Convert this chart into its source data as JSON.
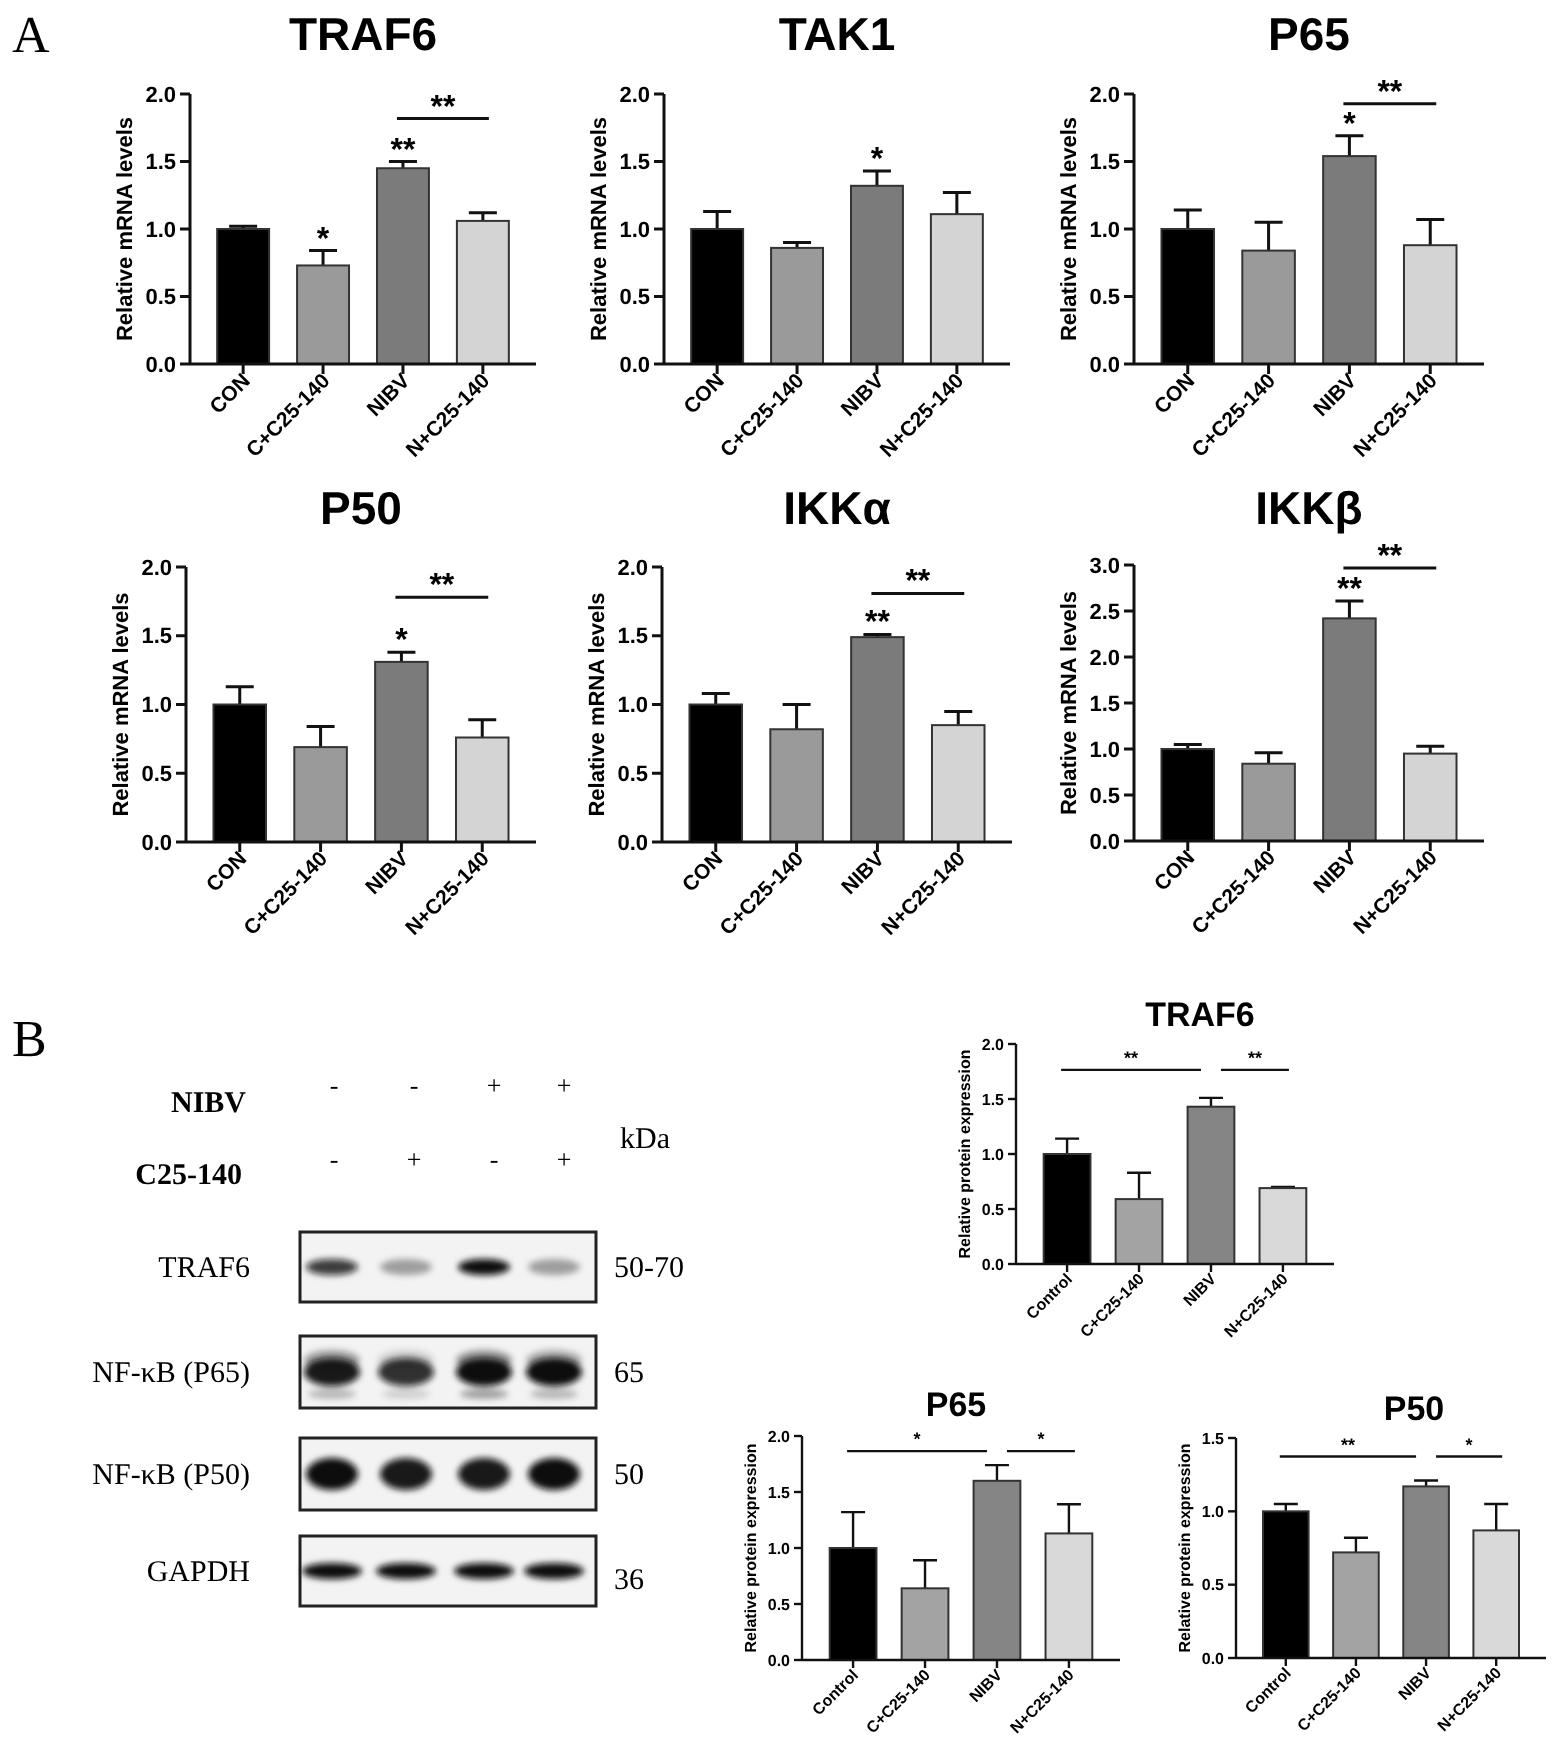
{
  "chart_data": [
    {
      "type": "bar",
      "title": "TRAF6",
      "ylabel": "Relative mRNA levels",
      "categories": [
        "CON",
        "C+C25-140",
        "NIBV",
        "N+C25-140"
      ],
      "values": [
        1.0,
        0.73,
        1.45,
        1.06
      ],
      "errors": [
        0.02,
        0.11,
        0.05,
        0.06
      ],
      "colors": [
        "#000000",
        "#9a9a9a",
        "#7b7b7b",
        "#d4d4d4"
      ],
      "ylim": [
        0,
        2
      ],
      "yticks": [
        {
          "value": 0,
          "label": "0.0"
        },
        {
          "value": 0.5,
          "label": "0.5"
        },
        {
          "value": 1,
          "label": "1.0"
        },
        {
          "value": 1.5,
          "label": "1.5"
        },
        {
          "value": 2,
          "label": "2.0"
        }
      ],
      "annotations": [
        "A",
        {
          "text": "*",
          "x": "C+C25-140",
          "y": 0.84
        },
        {
          "text": "**",
          "x": "NIBV",
          "y": 1.5
        },
        "**"
      ]
    },
    {
      "type": "bar",
      "title": "TAK1",
      "ylabel": "Relative mRNA levels",
      "categories": [
        "CON",
        "C+C25-140",
        "NIBV",
        "N+C25-140"
      ],
      "values": [
        1.0,
        0.86,
        1.32,
        1.11
      ],
      "errors": [
        0.13,
        0.04,
        0.11,
        0.16
      ],
      "colors": [
        "#000000",
        "#9a9a9a",
        "#7b7b7b",
        "#d4d4d4"
      ],
      "ylim": [
        0,
        2
      ],
      "yticks": [
        {
          "value": 0,
          "label": "0.0"
        },
        {
          "value": 0.5,
          "label": "0.5"
        },
        {
          "value": 1,
          "label": "1.0"
        },
        {
          "value": 1.5,
          "label": "1.5"
        },
        {
          "value": 2,
          "label": "2.0"
        }
      ],
      "annotations": [
        {
          "text": "*",
          "x": "NIBV",
          "y": 1.43
        }
      ]
    },
    {
      "type": "bar",
      "title": "P65",
      "ylabel": "Relative mRNA levels",
      "categories": [
        "CON",
        "C+C25-140",
        "NIBV",
        "N+C25-140"
      ],
      "values": [
        1.0,
        0.84,
        1.54,
        0.88
      ],
      "errors": [
        0.14,
        0.21,
        0.15,
        0.19
      ],
      "colors": [
        "#000000",
        "#9a9a9a",
        "#7b7b7b",
        "#d4d4d4"
      ],
      "ylim": [
        0,
        2
      ],
      "yticks": [
        {
          "value": 0,
          "label": "0.0"
        },
        {
          "value": 0.5,
          "label": "0.5"
        },
        {
          "value": 1,
          "label": "1.0"
        },
        {
          "value": 1.5,
          "label": "1.5"
        },
        {
          "value": 2,
          "label": "2.0"
        }
      ],
      "annotations": [
        {
          "text": "*",
          "x": "NIBV",
          "y": 1.69
        },
        "**"
      ]
    },
    {
      "type": "bar",
      "title": "P50",
      "ylabel": "Relative mRNA levels",
      "categories": [
        "CON",
        "C+C25-140",
        "NIBV",
        "N+C25-140"
      ],
      "values": [
        1.0,
        0.69,
        1.31,
        0.76
      ],
      "errors": [
        0.13,
        0.15,
        0.07,
        0.13
      ],
      "colors": [
        "#000000",
        "#9a9a9a",
        "#7b7b7b",
        "#d4d4d4"
      ],
      "ylim": [
        0,
        2
      ],
      "yticks": [
        {
          "value": 0,
          "label": "0.0"
        },
        {
          "value": 0.5,
          "label": "0.5"
        },
        {
          "value": 1,
          "label": "1.0"
        },
        {
          "value": 1.5,
          "label": "1.5"
        },
        {
          "value": 2,
          "label": "2.0"
        }
      ],
      "annotations": [
        {
          "text": "*",
          "x": "NIBV",
          "y": 1.38
        },
        "**"
      ]
    },
    {
      "type": "bar",
      "title": "IKKα",
      "ylabel": "Relative mRNA levels",
      "categories": [
        "CON",
        "C+C25-140",
        "NIBV",
        "N+C25-140"
      ],
      "values": [
        1.0,
        0.82,
        1.49,
        0.85
      ],
      "errors": [
        0.08,
        0.18,
        0.02,
        0.1
      ],
      "colors": [
        "#000000",
        "#9a9a9a",
        "#7b7b7b",
        "#d4d4d4"
      ],
      "ylim": [
        0,
        2
      ],
      "yticks": [
        {
          "value": 0,
          "label": "0.0"
        },
        {
          "value": 0.5,
          "label": "0.5"
        },
        {
          "value": 1,
          "label": "1.0"
        },
        {
          "value": 1.5,
          "label": "1.5"
        },
        {
          "value": 2,
          "label": "2.0"
        }
      ],
      "annotations": [
        {
          "text": "**",
          "x": "NIBV",
          "y": 1.51
        },
        "**"
      ]
    },
    {
      "type": "bar",
      "title": "IKKβ",
      "ylabel": "Relative mRNA levels",
      "categories": [
        "CON",
        "C+C25-140",
        "NIBV",
        "N+C25-140"
      ],
      "values": [
        1.0,
        0.84,
        2.42,
        0.95
      ],
      "errors": [
        0.05,
        0.12,
        0.19,
        0.08
      ],
      "colors": [
        "#000000",
        "#9a9a9a",
        "#7b7b7b",
        "#d4d4d4"
      ],
      "ylim": [
        0,
        3
      ],
      "yticks": [
        {
          "value": 0,
          "label": "0.0"
        },
        {
          "value": 0.5,
          "label": "0.5"
        },
        {
          "value": 1,
          "label": "1.0"
        },
        {
          "value": 1.5,
          "label": "1.5"
        },
        {
          "value": 2,
          "label": "2.0"
        },
        {
          "value": 2.5,
          "label": "2.5"
        },
        {
          "value": 3,
          "label": "3.0"
        }
      ],
      "annotations": [
        {
          "text": "**",
          "x": "NIBV",
          "y": 2.61
        },
        "**"
      ]
    },
    {
      "type": "other",
      "y_categories": [
        "TRAF6",
        "NF-κB (P65)",
        "NF-κB (P50)",
        "GAPDH"
      ],
      "y2_categories": [
        "50-70",
        "65",
        "50",
        "36"
      ],
      "annotations": [
        "B",
        "NIBV",
        "C25-140",
        "kDa",
        "-",
        "-",
        "+",
        "+",
        "-",
        "+",
        "-",
        "+"
      ]
    },
    {
      "type": "bar",
      "title": "TRAF6",
      "ylabel": "Relative protein expression",
      "categories": [
        "Control",
        "C+C25-140",
        "NIBV",
        "N+C25-140"
      ],
      "values": [
        1.0,
        0.59,
        1.43,
        0.69
      ],
      "errors": [
        0.14,
        0.24,
        0.08,
        0.01
      ],
      "colors": [
        "#000000",
        "#a3a3a3",
        "#858585",
        "#d9d9d9"
      ],
      "ylim": [
        0,
        2
      ],
      "yticks": [
        {
          "value": 0,
          "label": "0.0"
        },
        {
          "value": 0.5,
          "label": "0.5"
        },
        {
          "value": 1,
          "label": "1.0"
        },
        {
          "value": 1.5,
          "label": "1.5"
        },
        {
          "value": 2,
          "label": "2.0"
        }
      ],
      "annotations": [
        "**",
        "**"
      ]
    },
    {
      "type": "bar",
      "title": "P65",
      "ylabel": "Relative protein expression",
      "categories": [
        "Control",
        "C+C25-140",
        "NIBV",
        "N+C25-140"
      ],
      "values": [
        1.0,
        0.64,
        1.6,
        1.13
      ],
      "errors": [
        0.32,
        0.25,
        0.14,
        0.26
      ],
      "colors": [
        "#000000",
        "#a3a3a3",
        "#858585",
        "#d9d9d9"
      ],
      "ylim": [
        0,
        2
      ],
      "yticks": [
        {
          "value": 0,
          "label": "0.0"
        },
        {
          "value": 0.5,
          "label": "0.5"
        },
        {
          "value": 1,
          "label": "1.0"
        },
        {
          "value": 1.5,
          "label": "1.5"
        },
        {
          "value": 2,
          "label": "2.0"
        }
      ],
      "annotations": [
        "*",
        "*"
      ]
    },
    {
      "type": "bar",
      "title": "P50",
      "ylabel": "Relative protein expression",
      "categories": [
        "Control",
        "C+C25-140",
        "NIBV",
        "N+C25-140"
      ],
      "values": [
        1.0,
        0.72,
        1.17,
        0.87
      ],
      "errors": [
        0.05,
        0.1,
        0.04,
        0.18
      ],
      "colors": [
        "#000000",
        "#a3a3a3",
        "#858585",
        "#d9d9d9"
      ],
      "ylim": [
        0,
        1.5
      ],
      "yticks": [
        {
          "value": 0,
          "label": "0.0"
        },
        {
          "value": 0.5,
          "label": "0.5"
        },
        {
          "value": 1,
          "label": "1.0"
        },
        {
          "value": 1.5,
          "label": "1.5"
        }
      ],
      "annotations": [
        "**",
        "*"
      ]
    }
  ]
}
